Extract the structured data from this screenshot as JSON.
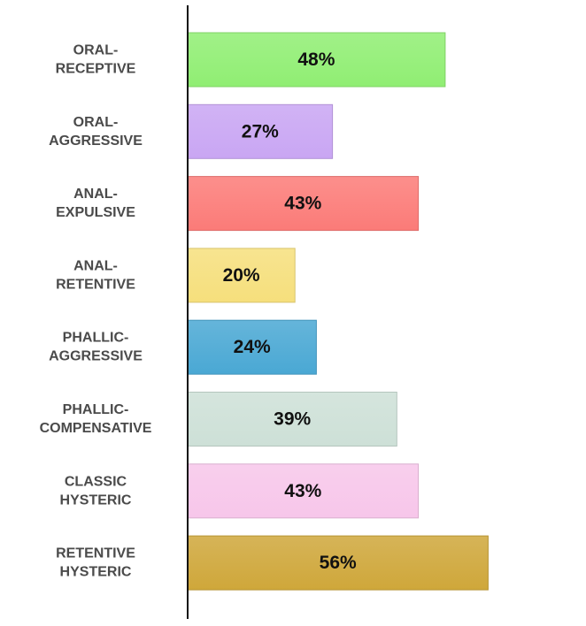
{
  "chart_data": {
    "type": "bar",
    "orientation": "horizontal",
    "categories": [
      [
        "ORAL-",
        "RECEPTIVE"
      ],
      [
        "ORAL-",
        "AGGRESSIVE"
      ],
      [
        "ANAL-",
        "EXPULSIVE"
      ],
      [
        "ANAL-",
        "RETENTIVE"
      ],
      [
        "PHALLIC-",
        "AGGRESSIVE"
      ],
      [
        "PHALLIC-",
        "COMPENSATIVE"
      ],
      [
        "CLASSIC",
        "HYSTERIC"
      ],
      [
        "RETENTIVE",
        "HYSTERIC"
      ]
    ],
    "values": [
      48,
      27,
      43,
      20,
      24,
      39,
      43,
      56
    ],
    "value_labels": [
      "48%",
      "27%",
      "43%",
      "20%",
      "24%",
      "39%",
      "43%",
      "56%"
    ],
    "colors": [
      "#90ee73",
      "#c9a6f3",
      "#fb7b78",
      "#f6df7c",
      "#4aa8d4",
      "#cde0d7",
      "#f7c6ea",
      "#cfa73a"
    ],
    "xlim": [
      0,
      100
    ],
    "grid": false,
    "legend": "none"
  }
}
